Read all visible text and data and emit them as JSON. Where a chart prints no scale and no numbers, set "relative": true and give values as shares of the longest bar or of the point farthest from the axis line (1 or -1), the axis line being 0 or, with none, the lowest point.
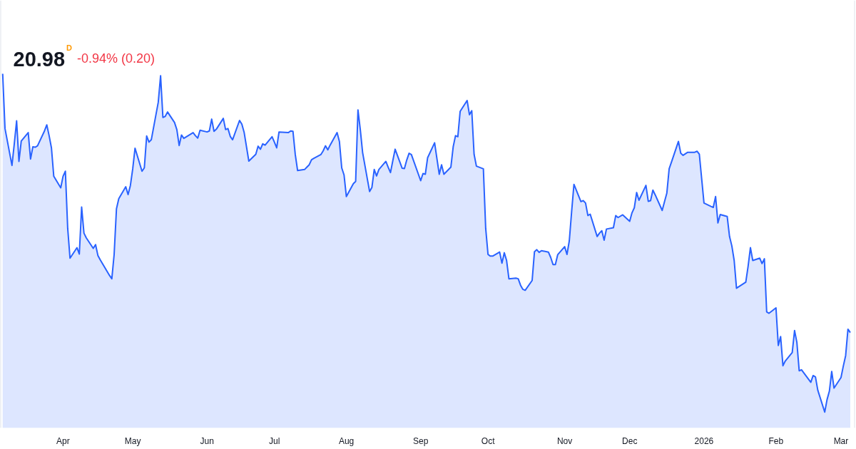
{
  "chart_data": {
    "type": "area",
    "title": "20.98",
    "annotations": [
      "D",
      "-0.94% (0.20)"
    ],
    "relative": true,
    "line_style": "solid",
    "xlim": [
      "2025-03-05",
      "2026-03-08"
    ],
    "xticks": [
      {
        "value": "2025-04-01",
        "label": "Apr"
      },
      {
        "value": "2025-05-01",
        "label": "May"
      },
      {
        "value": "2025-06-02",
        "label": "Jun"
      },
      {
        "value": "2025-07-01",
        "label": "Jul"
      },
      {
        "value": "2025-08-01",
        "label": "Aug"
      },
      {
        "value": "2025-09-02",
        "label": "Sep"
      },
      {
        "value": "2025-10-01",
        "label": "Oct"
      },
      {
        "value": "2025-11-03",
        "label": "Nov"
      },
      {
        "value": "2025-12-01",
        "label": "Dec"
      },
      {
        "value": "2026-01-02",
        "label": "2026"
      },
      {
        "value": "2026-02-02",
        "label": "Feb"
      },
      {
        "value": "2026-03-02",
        "label": "Mar"
      }
    ],
    "x": [
      "2025-03-06",
      "2025-03-07",
      "2025-03-10",
      "2025-03-11",
      "2025-03-12",
      "2025-03-13",
      "2025-03-14",
      "2025-03-17",
      "2025-03-18",
      "2025-03-19",
      "2025-03-20",
      "2025-03-21",
      "2025-03-24",
      "2025-03-25",
      "2025-03-26",
      "2025-03-27",
      "2025-03-28",
      "2025-03-31",
      "2025-04-01",
      "2025-04-02",
      "2025-04-03",
      "2025-04-04",
      "2025-04-07",
      "2025-04-08",
      "2025-04-09",
      "2025-04-10",
      "2025-04-11",
      "2025-04-14",
      "2025-04-15",
      "2025-04-16",
      "2025-04-17",
      "2025-04-21",
      "2025-04-22",
      "2025-04-23",
      "2025-04-24",
      "2025-04-25",
      "2025-04-28",
      "2025-04-29",
      "2025-04-30",
      "2025-05-01",
      "2025-05-02",
      "2025-05-05",
      "2025-05-06",
      "2025-05-07",
      "2025-05-08",
      "2025-05-09",
      "2025-05-12",
      "2025-05-13",
      "2025-05-14",
      "2025-05-15",
      "2025-05-16",
      "2025-05-19",
      "2025-05-20",
      "2025-05-21",
      "2025-05-22",
      "2025-05-23",
      "2025-05-27",
      "2025-05-28",
      "2025-05-29",
      "2025-05-30",
      "2025-06-02",
      "2025-06-03",
      "2025-06-04",
      "2025-06-05",
      "2025-06-06",
      "2025-06-09",
      "2025-06-10",
      "2025-06-11",
      "2025-06-12",
      "2025-06-13",
      "2025-06-16",
      "2025-06-17",
      "2025-06-18",
      "2025-06-20",
      "2025-06-23",
      "2025-06-24",
      "2025-06-25",
      "2025-06-26",
      "2025-06-27",
      "2025-06-30",
      "2025-07-01",
      "2025-07-02",
      "2025-07-03",
      "2025-07-07",
      "2025-07-08",
      "2025-07-09",
      "2025-07-10",
      "2025-07-11",
      "2025-07-14",
      "2025-07-15",
      "2025-07-16",
      "2025-07-17",
      "2025-07-18",
      "2025-07-21",
      "2025-07-22",
      "2025-07-23",
      "2025-07-24",
      "2025-07-25",
      "2025-07-28",
      "2025-07-29",
      "2025-07-30",
      "2025-07-31",
      "2025-08-01",
      "2025-08-04",
      "2025-08-05",
      "2025-08-06",
      "2025-08-07",
      "2025-08-08",
      "2025-08-11",
      "2025-08-12",
      "2025-08-13",
      "2025-08-14",
      "2025-08-15",
      "2025-08-18",
      "2025-08-19",
      "2025-08-20",
      "2025-08-21",
      "2025-08-22",
      "2025-08-25",
      "2025-08-26",
      "2025-08-27",
      "2025-08-28",
      "2025-08-29",
      "2025-09-02",
      "2025-09-03",
      "2025-09-04",
      "2025-09-05",
      "2025-09-08",
      "2025-09-09",
      "2025-09-10",
      "2025-09-11",
      "2025-09-12",
      "2025-09-15",
      "2025-09-16",
      "2025-09-17",
      "2025-09-18",
      "2025-09-19",
      "2025-09-22",
      "2025-09-23",
      "2025-09-24",
      "2025-09-25",
      "2025-09-26",
      "2025-09-29",
      "2025-09-30",
      "2025-10-01",
      "2025-10-02",
      "2025-10-03",
      "2025-10-06",
      "2025-10-07",
      "2025-10-08",
      "2025-10-09",
      "2025-10-10",
      "2025-10-13",
      "2025-10-14",
      "2025-10-15",
      "2025-10-16",
      "2025-10-17",
      "2025-10-20",
      "2025-10-21",
      "2025-10-22",
      "2025-10-23",
      "2025-10-24",
      "2025-10-27",
      "2025-10-28",
      "2025-10-29",
      "2025-10-30",
      "2025-10-31",
      "2025-11-03",
      "2025-11-04",
      "2025-11-05",
      "2025-11-06",
      "2025-11-07",
      "2025-11-10",
      "2025-11-11",
      "2025-11-12",
      "2025-11-13",
      "2025-11-14",
      "2025-11-17",
      "2025-11-18",
      "2025-11-19",
      "2025-11-20",
      "2025-11-21",
      "2025-11-24",
      "2025-11-25",
      "2025-11-26",
      "2025-11-28",
      "2025-12-01",
      "2025-12-02",
      "2025-12-03",
      "2025-12-04",
      "2025-12-05",
      "2025-12-08",
      "2025-12-09",
      "2025-12-10",
      "2025-12-11",
      "2025-12-12",
      "2025-12-15",
      "2025-12-16",
      "2025-12-17",
      "2025-12-18",
      "2025-12-19",
      "2025-12-22",
      "2025-12-23",
      "2025-12-24",
      "2025-12-26",
      "2025-12-29",
      "2025-12-30",
      "2025-12-31",
      "2026-01-02",
      "2026-01-05",
      "2026-01-06",
      "2026-01-07",
      "2026-01-08",
      "2026-01-09",
      "2026-01-12",
      "2026-01-13",
      "2026-01-14",
      "2026-01-15",
      "2026-01-16",
      "2026-01-20",
      "2026-01-21",
      "2026-01-22",
      "2026-01-23",
      "2026-01-26",
      "2026-01-27",
      "2026-01-28",
      "2026-01-29",
      "2026-01-30",
      "2026-02-02",
      "2026-02-03",
      "2026-02-04",
      "2026-02-05",
      "2026-02-06",
      "2026-02-09",
      "2026-02-10",
      "2026-02-11",
      "2026-02-12",
      "2026-02-13",
      "2026-02-17",
      "2026-02-18",
      "2026-02-19",
      "2026-02-20",
      "2026-02-23",
      "2026-02-24",
      "2026-02-25",
      "2026-02-26",
      "2026-02-27",
      "2026-03-02",
      "2026-03-03",
      "2026-03-04",
      "2026-03-05",
      "2026-03-06"
    ],
    "series": [
      {
        "color": "#2962ff",
        "values": [
          1.0,
          0.838,
          0.729,
          0.793,
          0.861,
          0.741,
          0.801,
          0.826,
          0.748,
          0.784,
          0.783,
          0.787,
          0.831,
          0.849,
          0.817,
          0.781,
          0.697,
          0.663,
          0.697,
          0.712,
          0.543,
          0.455,
          0.486,
          0.467,
          0.606,
          0.529,
          0.515,
          0.484,
          0.495,
          0.463,
          0.45,
          0.404,
          0.394,
          0.466,
          0.601,
          0.631,
          0.666,
          0.643,
          0.67,
          0.719,
          0.78,
          0.712,
          0.722,
          0.816,
          0.798,
          0.805,
          0.916,
          0.994,
          0.871,
          0.874,
          0.887,
          0.856,
          0.835,
          0.788,
          0.819,
          0.809,
          0.826,
          0.817,
          0.81,
          0.833,
          0.828,
          0.831,
          0.866,
          0.83,
          0.836,
          0.868,
          0.835,
          0.838,
          0.815,
          0.805,
          0.862,
          0.851,
          0.826,
          0.742,
          0.762,
          0.786,
          0.777,
          0.793,
          0.789,
          0.814,
          0.798,
          0.781,
          0.828,
          0.826,
          0.831,
          0.83,
          0.761,
          0.714,
          0.717,
          0.724,
          0.731,
          0.746,
          0.75,
          0.761,
          0.772,
          0.787,
          0.775,
          0.789,
          0.826,
          0.8,
          0.722,
          0.701,
          0.637,
          0.675,
          0.682,
          0.893,
          0.835,
          0.767,
          0.652,
          0.664,
          0.717,
          0.698,
          0.717,
          0.741,
          0.724,
          0.708,
          0.743,
          0.777,
          0.721,
          0.72,
          0.745,
          0.765,
          0.761,
          0.684,
          0.705,
          0.703,
          0.752,
          0.796,
          0.749,
          0.703,
          0.731,
          0.703,
          0.724,
          0.784,
          0.817,
          0.814,
          0.889,
          0.921,
          0.879,
          0.891,
          0.762,
          0.727,
          0.719,
          0.543,
          0.466,
          0.461,
          0.461,
          0.473,
          0.44,
          0.471,
          0.448,
          0.394,
          0.396,
          0.394,
          0.375,
          0.363,
          0.36,
          0.389,
          0.474,
          0.48,
          0.472,
          0.477,
          0.473,
          0.457,
          0.436,
          0.436,
          0.465,
          0.489,
          0.466,
          0.506,
          0.592,
          0.673,
          0.622,
          0.625,
          0.618,
          0.581,
          0.585,
          0.519,
          0.529,
          0.536,
          0.508,
          0.541,
          0.545,
          0.581,
          0.575,
          0.583,
          0.564,
          0.589,
          0.604,
          0.649,
          0.626,
          0.67,
          0.623,
          0.625,
          0.656,
          0.642,
          0.596,
          0.622,
          0.647,
          0.719,
          0.739,
          0.8,
          0.765,
          0.759,
          0.768,
          0.768,
          0.771,
          0.762,
          0.618,
          0.608,
          0.605,
          0.637,
          0.559,
          0.584,
          0.578,
          0.519,
          0.491,
          0.448,
          0.366,
          0.384,
          0.431,
          0.486,
          0.448,
          0.455,
          0.439,
          0.453,
          0.296,
          0.292,
          0.308,
          0.197,
          0.223,
          0.137,
          0.151,
          0.176,
          0.241,
          0.206,
          0.122,
          0.125,
          0.088,
          0.108,
          0.104,
          0.065,
          0.0,
          0.037,
          0.062,
          0.12,
          0.071,
          0.102,
          0.136,
          0.167,
          0.245,
          0.235
        ]
      }
    ]
  }
}
